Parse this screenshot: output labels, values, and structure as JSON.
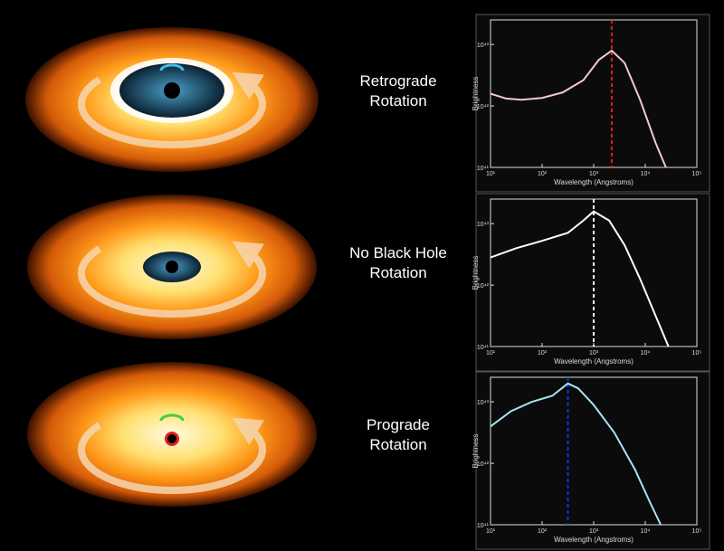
{
  "panels": [
    {
      "label": [
        "Retrograde",
        "Rotation"
      ],
      "chart": {
        "type": "line",
        "ylabel": "Brightness",
        "xlabel": "Wavelength (Angstroms)",
        "xlim": [
          1,
          5
        ],
        "xticks": [
          {
            "value": 1,
            "label": "10¹"
          },
          {
            "value": 2,
            "label": "10²"
          },
          {
            "value": 3,
            "label": "10³"
          },
          {
            "value": 4,
            "label": "10⁴"
          },
          {
            "value": 5,
            "label": "10⁵"
          }
        ],
        "ylim": [
          41,
          43.4
        ],
        "yticks": [
          {
            "value": 41,
            "label": "10⁴¹"
          },
          {
            "value": 42,
            "label": "10⁴²"
          },
          {
            "value": 43,
            "label": "10⁴³"
          }
        ],
        "series": [
          {
            "color": "#f4c8c8",
            "x": [
              1,
              1.3,
              1.6,
              2,
              2.4,
              2.8,
              3.1,
              3.35,
              3.6,
              3.9,
              4.2,
              4.4
            ],
            "values": [
              42.2,
              42.12,
              42.1,
              42.13,
              42.22,
              42.42,
              42.75,
              42.9,
              42.7,
              42.1,
              41.4,
              41
            ]
          }
        ],
        "marker": {
          "x": 3.35,
          "color": "#e01c1c"
        }
      }
    },
    {
      "label": [
        "No Black Hole",
        "Rotation"
      ],
      "chart": {
        "type": "line",
        "ylabel": "Brightness",
        "xlabel": "Wavelength (Angstroms)",
        "xlim": [
          1,
          5
        ],
        "xticks": [
          {
            "value": 1,
            "label": "10¹"
          },
          {
            "value": 2,
            "label": "10²"
          },
          {
            "value": 3,
            "label": "10³"
          },
          {
            "value": 4,
            "label": "10⁴"
          },
          {
            "value": 5,
            "label": "10⁵"
          }
        ],
        "ylim": [
          41,
          43.4
        ],
        "yticks": [
          {
            "value": 41,
            "label": "10⁴¹"
          },
          {
            "value": 42,
            "label": "10⁴²"
          },
          {
            "value": 43,
            "label": "10⁴³"
          }
        ],
        "series": [
          {
            "color": "#ffffff",
            "x": [
              1,
              1.5,
              2,
              2.5,
              2.8,
              3,
              3.3,
              3.6,
              3.9,
              4.2,
              4.45
            ],
            "values": [
              42.45,
              42.6,
              42.72,
              42.85,
              43.05,
              43.2,
              43.05,
              42.65,
              42.1,
              41.5,
              41
            ]
          }
        ],
        "marker": {
          "x": 3,
          "color": "#ffffff"
        }
      }
    },
    {
      "label": [
        "Prograde",
        "Rotation"
      ],
      "chart": {
        "type": "line",
        "ylabel": "Brightness",
        "xlabel": "Wavelength (Angstroms)",
        "xlim": [
          1,
          5
        ],
        "xticks": [
          {
            "value": 1,
            "label": "10¹"
          },
          {
            "value": 2,
            "label": "10²"
          },
          {
            "value": 3,
            "label": "10³"
          },
          {
            "value": 4,
            "label": "10⁴"
          },
          {
            "value": 5,
            "label": "10⁵"
          }
        ],
        "ylim": [
          41,
          43.4
        ],
        "yticks": [
          {
            "value": 41,
            "label": "10⁴¹"
          },
          {
            "value": 42,
            "label": "10⁴²"
          },
          {
            "value": 43,
            "label": "10⁴³"
          }
        ],
        "series": [
          {
            "color": "#a8e4f4",
            "x": [
              1,
              1.4,
              1.8,
              2.2,
              2.5,
              2.7,
              3,
              3.4,
              3.8,
              4.1,
              4.3
            ],
            "values": [
              42.6,
              42.85,
              43.0,
              43.1,
              43.3,
              43.22,
              42.95,
              42.5,
              41.9,
              41.35,
              41
            ]
          }
        ],
        "marker": {
          "x": 2.5,
          "color": "#1a2ee0"
        }
      }
    }
  ]
}
